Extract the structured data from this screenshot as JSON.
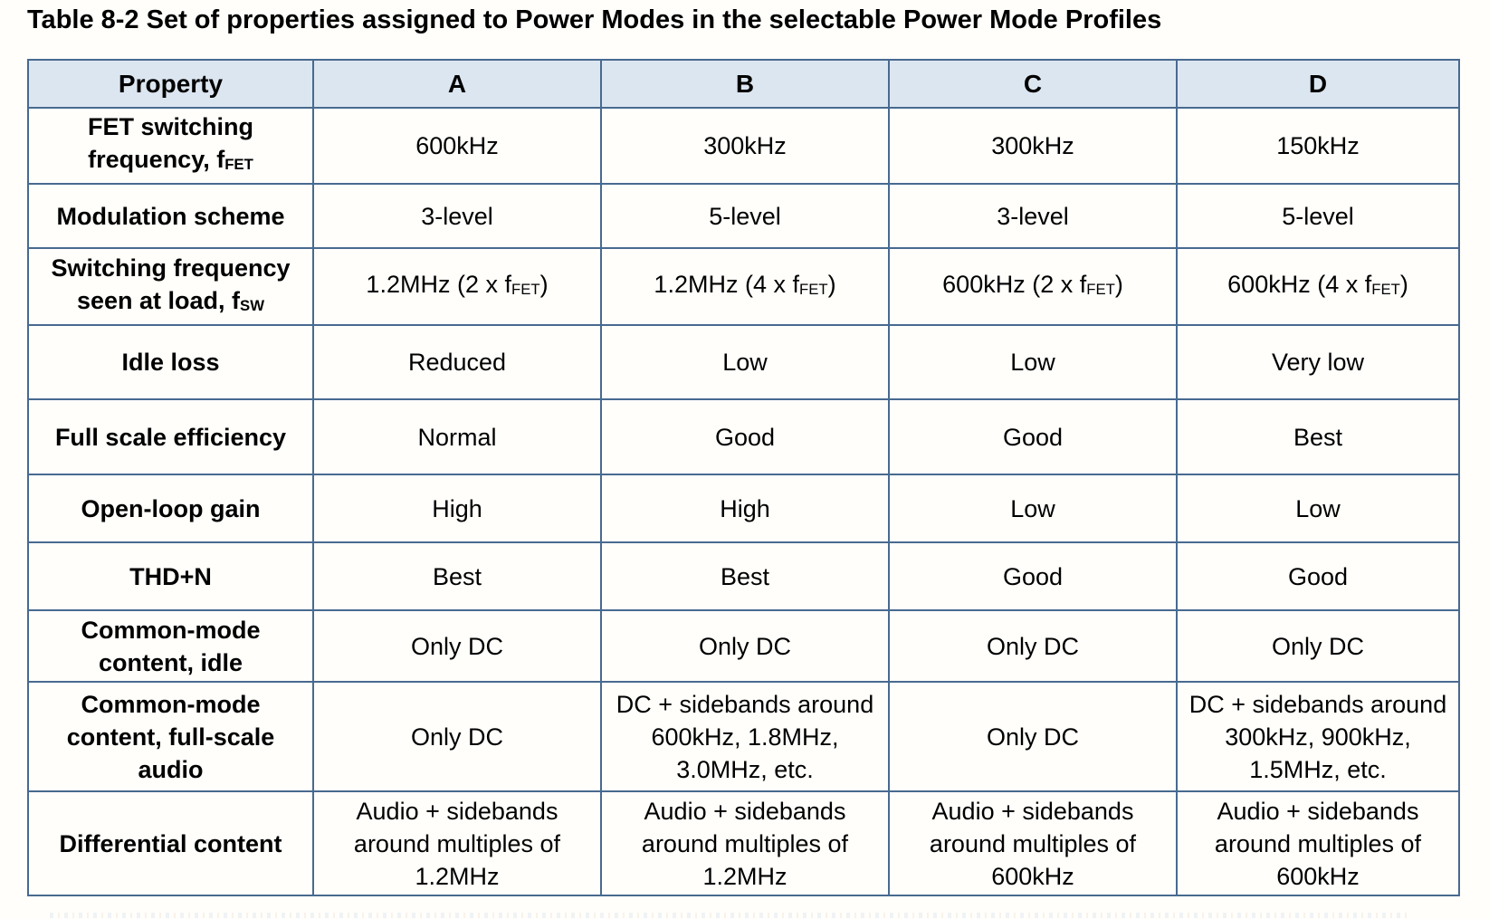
{
  "title": "Table 8-2 Set of properties assigned to Power Modes in the selectable Power Mode Profiles",
  "colors": {
    "header_fill": "#dce6f1",
    "border": "#486a90",
    "text": "#000000"
  },
  "chart_data": {
    "type": "table",
    "title": "Table 8-2 Set of properties assigned to Power Modes in the selectable Power Mode Profiles",
    "columns": [
      "Property",
      "A",
      "B",
      "C",
      "D"
    ],
    "rows": [
      {
        "property": "FET switching\nfrequency, f_{FET}",
        "values": [
          "600kHz",
          "300kHz",
          "300kHz",
          "150kHz"
        ]
      },
      {
        "property": "Modulation scheme",
        "values": [
          "3-level",
          "5-level",
          "3-level",
          "5-level"
        ]
      },
      {
        "property": "Switching frequency\nseen at load, f_{SW}",
        "values": [
          "1.2MHz (2 x f_{FET})",
          "1.2MHz (4 x f_{FET})",
          "600kHz (2 x f_{FET})",
          "600kHz (4 x f_{FET})"
        ]
      },
      {
        "property": "Idle loss",
        "values": [
          "Reduced",
          "Low",
          "Low",
          "Very low"
        ]
      },
      {
        "property": "Full scale efficiency",
        "values": [
          "Normal",
          "Good",
          "Good",
          "Best"
        ]
      },
      {
        "property": "Open-loop gain",
        "values": [
          "High",
          "High",
          "Low",
          "Low"
        ]
      },
      {
        "property": "THD+N",
        "values": [
          "Best",
          "Best",
          "Good",
          "Good"
        ]
      },
      {
        "property": "Common-mode\ncontent, idle",
        "values": [
          "Only DC",
          "Only DC",
          "Only DC",
          "Only DC"
        ]
      },
      {
        "property": "Common-mode\ncontent, full-scale\naudio",
        "values": [
          "Only DC",
          "DC + sidebands around\n600kHz, 1.8MHz,\n3.0MHz, etc.",
          "Only DC",
          "DC + sidebands around\n300kHz, 900kHz,\n1.5MHz, etc."
        ]
      },
      {
        "property": "Differential content",
        "values": [
          "Audio + sidebands\naround multiples of\n1.2MHz",
          "Audio + sidebands\naround multiples of\n1.2MHz",
          "Audio + sidebands\naround multiples of\n600kHz",
          "Audio + sidebands\naround multiples of\n600kHz"
        ]
      }
    ]
  }
}
